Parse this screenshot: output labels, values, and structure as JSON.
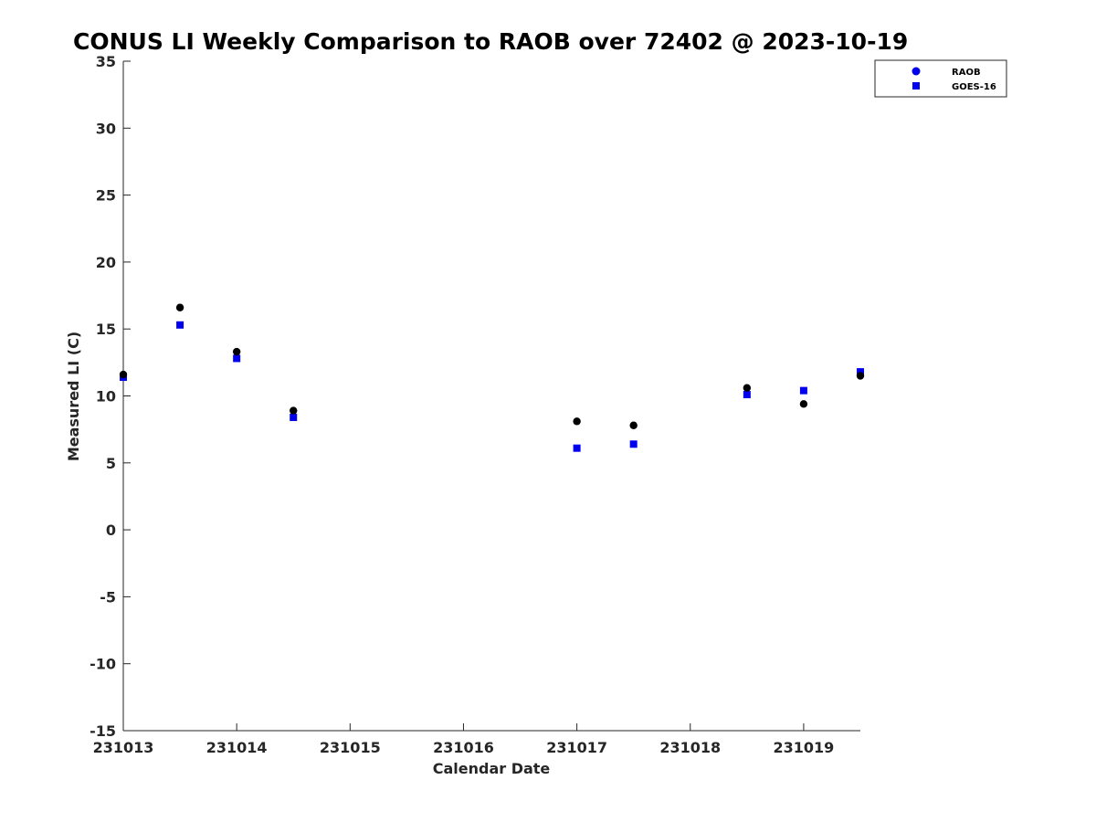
{
  "chart_data": {
    "type": "scatter",
    "title": "CONUS LI Weekly Comparison to RAOB over 72402 @ 2023-10-19",
    "xlabel": "Calendar Date",
    "ylabel": "Measured LI (C)",
    "xlim": [
      "2023-10-13",
      "2023-10-19T12:00"
    ],
    "ylim": [
      -15,
      35
    ],
    "x_ticks": [
      "231013",
      "231014",
      "231015",
      "231016",
      "231017",
      "231018",
      "231019"
    ],
    "y_ticks": [
      "-15",
      "-10",
      "-5",
      "0",
      "5",
      "10",
      "15",
      "20",
      "25",
      "30",
      "35"
    ],
    "grid": false,
    "legend_position": "top-right",
    "series": [
      {
        "name": "RAOB",
        "marker": "circle",
        "color": "#000000",
        "legend_color": "#0000ee",
        "points": [
          {
            "x": "2023-10-13T00:00",
            "y": 11.6
          },
          {
            "x": "2023-10-13T12:00",
            "y": 16.6
          },
          {
            "x": "2023-10-14T00:00",
            "y": 13.3
          },
          {
            "x": "2023-10-14T12:00",
            "y": 8.9
          },
          {
            "x": "2023-10-17T00:00",
            "y": 8.1
          },
          {
            "x": "2023-10-17T12:00",
            "y": 7.8
          },
          {
            "x": "2023-10-18T12:00",
            "y": 10.6
          },
          {
            "x": "2023-10-19T00:00",
            "y": 9.4
          },
          {
            "x": "2023-10-19T12:00",
            "y": 11.5
          }
        ]
      },
      {
        "name": "GOES-16",
        "marker": "square",
        "color": "#0000ee",
        "points": [
          {
            "x": "2023-10-13T00:00",
            "y": 11.4
          },
          {
            "x": "2023-10-13T12:00",
            "y": 15.3
          },
          {
            "x": "2023-10-14T00:00",
            "y": 12.8
          },
          {
            "x": "2023-10-14T12:00",
            "y": 8.4
          },
          {
            "x": "2023-10-17T00:00",
            "y": 6.1
          },
          {
            "x": "2023-10-17T12:00",
            "y": 6.4
          },
          {
            "x": "2023-10-18T12:00",
            "y": 10.1
          },
          {
            "x": "2023-10-19T00:00",
            "y": 10.4
          },
          {
            "x": "2023-10-19T12:00",
            "y": 11.8
          }
        ]
      }
    ]
  }
}
